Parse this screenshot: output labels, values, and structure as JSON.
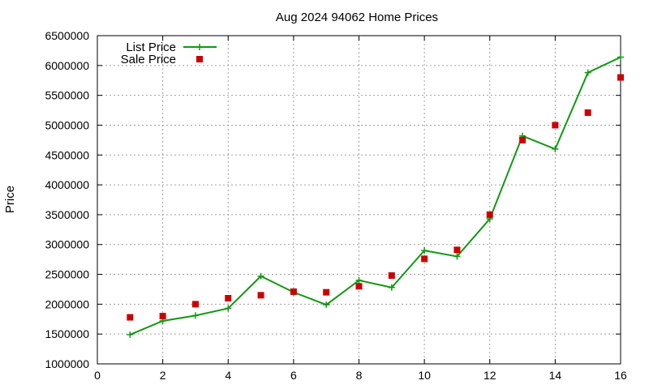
{
  "chart_data": {
    "type": "line",
    "title": "Aug 2024 94062 Home Prices",
    "xlabel": "",
    "ylabel": "Price",
    "xlim": [
      0,
      16
    ],
    "ylim": [
      1000000,
      6500000
    ],
    "xticks": [
      0,
      2,
      4,
      6,
      8,
      10,
      12,
      14,
      16
    ],
    "yticks": [
      1000000,
      1500000,
      2000000,
      2500000,
      3000000,
      3500000,
      4000000,
      4500000,
      5000000,
      5500000,
      6000000,
      6500000
    ],
    "grid": true,
    "legend_position": "top-left",
    "series": [
      {
        "name": "List Price",
        "style": "line-with-plus-markers",
        "color": "#119911",
        "x": [
          1,
          2,
          3,
          4,
          5,
          6,
          7,
          8,
          9,
          10,
          11,
          12,
          13,
          14,
          15,
          16
        ],
        "y": [
          1490000,
          1720000,
          1810000,
          1930000,
          2470000,
          2200000,
          1990000,
          2400000,
          2280000,
          2900000,
          2800000,
          3430000,
          4820000,
          4600000,
          5880000,
          6140000
        ]
      },
      {
        "name": "Sale Price",
        "style": "square-markers",
        "color": "#cc0000",
        "x": [
          1,
          2,
          3,
          4,
          5,
          6,
          7,
          8,
          9,
          10,
          11,
          12,
          13,
          14,
          15,
          16
        ],
        "y": [
          1780000,
          1800000,
          2000000,
          2100000,
          2150000,
          2210000,
          2200000,
          2300000,
          2480000,
          2760000,
          2910000,
          3500000,
          4750000,
          5000000,
          5210000,
          5800000
        ]
      }
    ]
  }
}
